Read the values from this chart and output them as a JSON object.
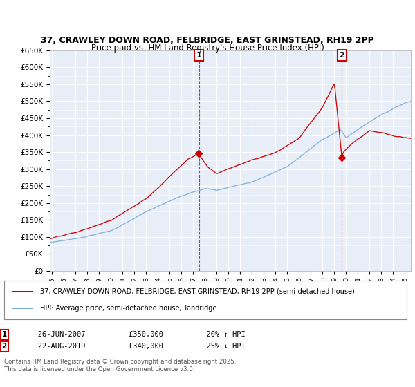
{
  "title": "37, CRAWLEY DOWN ROAD, FELBRIDGE, EAST GRINSTEAD, RH19 2PP",
  "subtitle": "Price paid vs. HM Land Registry's House Price Index (HPI)",
  "ylim": [
    0,
    650000
  ],
  "xlim_start": 1994.8,
  "xlim_end": 2025.5,
  "marker1_x": 2007.48,
  "marker2_x": 2019.63,
  "marker1_label": "1",
  "marker2_label": "2",
  "marker1_date": "26-JUN-2007",
  "marker1_price": "£350,000",
  "marker1_hpi": "20% ↑ HPI",
  "marker2_date": "22-AUG-2019",
  "marker2_price": "£340,000",
  "marker2_hpi": "25% ↓ HPI",
  "legend_line1": "37, CRAWLEY DOWN ROAD, FELBRIDGE, EAST GRINSTEAD, RH19 2PP (semi-detached house)",
  "legend_line2": "HPI: Average price, semi-detached house, Tandridge",
  "red_color": "#cc0000",
  "blue_color": "#7bafd4",
  "footnote": "Contains HM Land Registry data © Crown copyright and database right 2025.\nThis data is licensed under the Open Government Licence v3.0.",
  "background_color": "#e8eef8",
  "grid_color": "#ffffff",
  "key_x_hpi": [
    1994.8,
    1995,
    1997,
    2000,
    2003,
    2007,
    2008,
    2009,
    2012,
    2015,
    2018,
    2019.5,
    2020,
    2021,
    2023,
    2025,
    2025.5
  ],
  "key_y_hpi": [
    83000,
    85000,
    96000,
    120000,
    175000,
    235000,
    245000,
    240000,
    265000,
    310000,
    390000,
    420000,
    395000,
    420000,
    465000,
    500000,
    505000
  ],
  "key_x_red": [
    1994.8,
    1995,
    1997,
    2000,
    2003,
    2006.5,
    2007.48,
    2007.6,
    2008.2,
    2009,
    2010,
    2012,
    2014,
    2016,
    2018,
    2019.0,
    2019.63,
    2019.75,
    2020.5,
    2022,
    2023,
    2024,
    2025,
    2025.5
  ],
  "key_y_red": [
    94000,
    96000,
    110000,
    145000,
    210000,
    330000,
    350000,
    340000,
    310000,
    290000,
    305000,
    330000,
    355000,
    400000,
    490000,
    560000,
    340000,
    355000,
    380000,
    415000,
    410000,
    400000,
    395000,
    393000
  ]
}
